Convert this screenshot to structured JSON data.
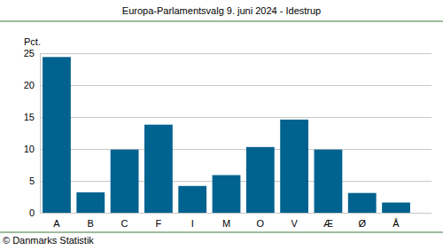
{
  "chart_data": {
    "type": "bar",
    "title": "Europa-Parlamentsvalg 9. juni 2024 - Idestrup",
    "ylabel": "Pct.",
    "source": "© Danmarks Statistik",
    "categories": [
      "A",
      "B",
      "C",
      "F",
      "I",
      "M",
      "O",
      "V",
      "Æ",
      "Ø",
      "Å"
    ],
    "values": [
      24.4,
      3.2,
      9.9,
      13.8,
      4.2,
      5.9,
      10.3,
      14.6,
      9.9,
      3.1,
      1.6
    ],
    "color": "#00628f",
    "ylim": [
      0,
      25
    ],
    "yticks": [
      0,
      5,
      10,
      15,
      20,
      25
    ],
    "grid": true
  }
}
